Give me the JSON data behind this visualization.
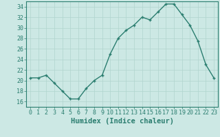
{
  "x": [
    0,
    1,
    2,
    3,
    4,
    5,
    6,
    7,
    8,
    9,
    10,
    11,
    12,
    13,
    14,
    15,
    16,
    17,
    18,
    19,
    20,
    21,
    22,
    23
  ],
  "y": [
    20.5,
    20.5,
    21,
    19.5,
    18,
    16.5,
    16.5,
    18.5,
    20,
    21,
    25,
    28,
    29.5,
    30.5,
    32,
    31.5,
    33,
    34.5,
    34.5,
    32.5,
    30.5,
    27.5,
    23,
    20.5
  ],
  "line_color": "#2a7d6f",
  "marker_color": "#2a7d6f",
  "bg_color": "#cce8e4",
  "grid_color": "#b0d4ce",
  "xlabel": "Humidex (Indice chaleur)",
  "ylim": [
    15,
    35
  ],
  "xlim": [
    -0.5,
    23.5
  ],
  "yticks": [
    16,
    18,
    20,
    22,
    24,
    26,
    28,
    30,
    32,
    34
  ],
  "xticks": [
    0,
    1,
    2,
    3,
    4,
    5,
    6,
    7,
    8,
    9,
    10,
    11,
    12,
    13,
    14,
    15,
    16,
    17,
    18,
    19,
    20,
    21,
    22,
    23
  ],
  "xtick_labels": [
    "0",
    "1",
    "2",
    "3",
    "4",
    "5",
    "6",
    "7",
    "8",
    "9",
    "10",
    "11",
    "12",
    "13",
    "14",
    "15",
    "16",
    "17",
    "18",
    "19",
    "20",
    "21",
    "22",
    "23"
  ],
  "xlabel_fontsize": 7.5,
  "tick_fontsize": 6.0
}
